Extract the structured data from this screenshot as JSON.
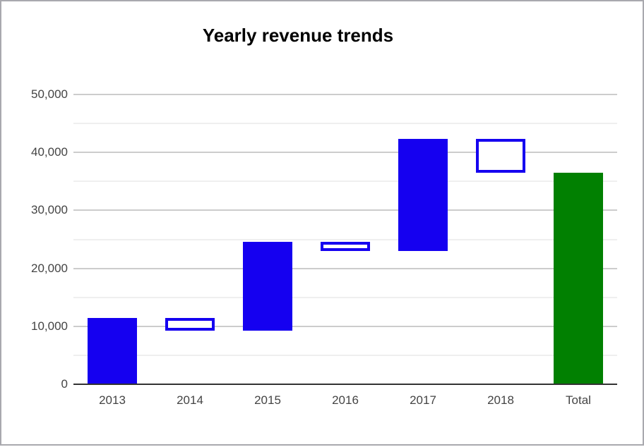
{
  "window": {
    "background": "#ffffff",
    "border_color": "#a9a9ae"
  },
  "chart_data": {
    "type": "waterfall",
    "title": "Yearly revenue trends",
    "categories": [
      "2013",
      "2014",
      "2015",
      "2016",
      "2017",
      "2018",
      "Total"
    ],
    "bars": [
      {
        "label": "2013",
        "start": 0,
        "end": 11400,
        "kind": "increase"
      },
      {
        "label": "2014",
        "start": 11400,
        "end": 9300,
        "kind": "decrease"
      },
      {
        "label": "2015",
        "start": 9300,
        "end": 24600,
        "kind": "increase"
      },
      {
        "label": "2016",
        "start": 24600,
        "end": 23000,
        "kind": "decrease"
      },
      {
        "label": "2017",
        "start": 23000,
        "end": 42300,
        "kind": "increase"
      },
      {
        "label": "2018",
        "start": 42300,
        "end": 36500,
        "kind": "decrease"
      },
      {
        "label": "Total",
        "start": 0,
        "end": 36500,
        "kind": "total"
      }
    ],
    "y_axis": {
      "min": 0,
      "max": 50000,
      "major_ticks": [
        {
          "label": "0",
          "value": 0
        },
        {
          "label": "10,000",
          "value": 10000
        },
        {
          "label": "20,000",
          "value": 20000
        },
        {
          "label": "30,000",
          "value": 30000
        },
        {
          "label": "40,000",
          "value": 40000
        },
        {
          "label": "50,000",
          "value": 50000
        }
      ],
      "minor_tick_values": [
        5000,
        15000,
        25000,
        35000,
        45000
      ]
    },
    "x_axis": {
      "labels": [
        "2013",
        "2014",
        "2015",
        "2016",
        "2017",
        "2018",
        "Total"
      ]
    },
    "legend": "none",
    "grid": true,
    "colors": {
      "increase_fill": "#1500f0",
      "decrease_border": "#1500f0",
      "decrease_fill": "#ffffff",
      "total_fill": "#018001",
      "major_gridline": "#cccccc",
      "minor_gridline": "#efefef",
      "baseline": "#333333",
      "axis_label": "#444444",
      "title_color": "#000000"
    }
  }
}
